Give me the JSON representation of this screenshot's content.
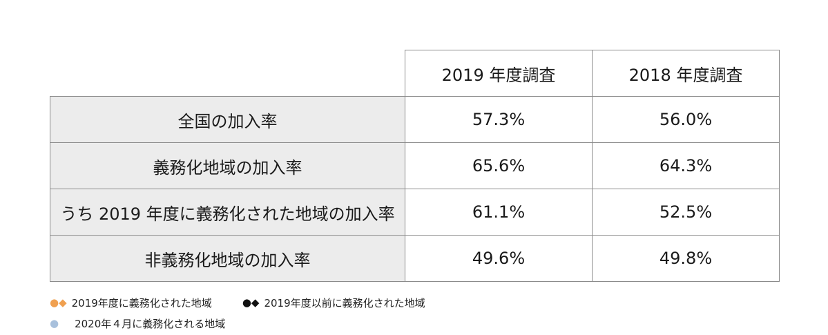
{
  "chart_data": {
    "type": "table",
    "columns": [
      "2019 年度調査",
      "2018 年度調査"
    ],
    "rows": [
      {
        "label": "全国の加入率",
        "values": [
          "57.3%",
          "56.0%"
        ]
      },
      {
        "label": "義務化地域の加入率",
        "values": [
          "65.6%",
          "64.3%"
        ]
      },
      {
        "label": "うち 2019 年度に義務化された地域の加入率",
        "values": [
          "61.1%",
          "52.5%"
        ]
      },
      {
        "label": "非義務化地域の加入率",
        "values": [
          "49.6%",
          "49.8%"
        ]
      }
    ]
  },
  "legend": {
    "item1": {
      "markers": "●◆",
      "text": "2019年度に義務化された地域",
      "color": "#f0a050"
    },
    "item2": {
      "markers": "●◆",
      "text": "2019年度以前に義務化された地域",
      "color": "#111111"
    },
    "item3": {
      "markers": "●",
      "text": "2020年４月に義務化される地域",
      "color": "#a8c0dc"
    }
  }
}
